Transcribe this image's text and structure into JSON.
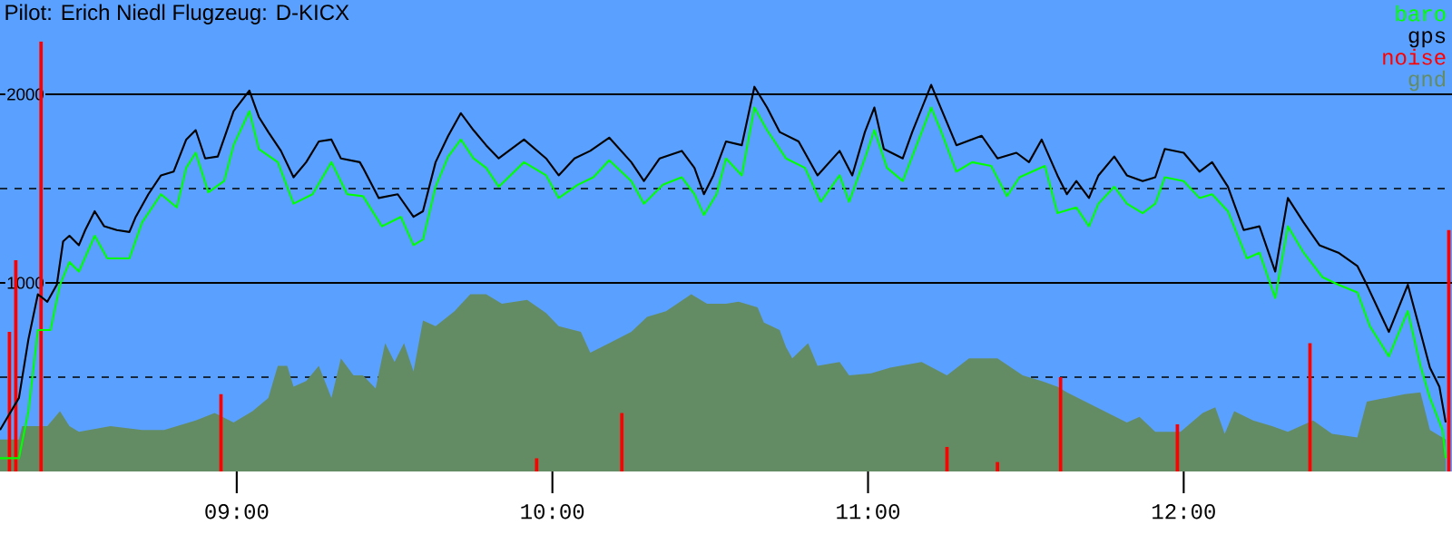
{
  "chart_data": {
    "type": "line",
    "title": "Pilot: Erich Niedl Flugzeug: D-KICX",
    "xlim": [
      8.25,
      12.85
    ],
    "ylim": [
      0,
      2500
    ],
    "xticks": [
      {
        "value": 9,
        "label": "09:00"
      },
      {
        "value": 10,
        "label": "10:00"
      },
      {
        "value": 11,
        "label": "11:00"
      },
      {
        "value": 12,
        "label": "12:00"
      }
    ],
    "yticks": [
      {
        "value": 500,
        "label": null
      },
      1000,
      {
        "value": 1500,
        "label": null
      },
      2000
    ],
    "grid": "y",
    "legend": "top right",
    "series": [
      {
        "name": "baro",
        "color": "#00ff00",
        "x": [
          8.25,
          8.31,
          8.34,
          8.37,
          8.41,
          8.44,
          8.47,
          8.5,
          8.55,
          8.59,
          8.66,
          8.7,
          8.76,
          8.81,
          8.84,
          8.87,
          8.91,
          8.96,
          8.99,
          9.04,
          9.07,
          9.13,
          9.18,
          9.24,
          9.3,
          9.35,
          9.4,
          9.46,
          9.52,
          9.56,
          9.59,
          9.63,
          9.67,
          9.71,
          9.75,
          9.79,
          9.83,
          9.91,
          9.98,
          10.02,
          10.08,
          10.13,
          10.18,
          10.25,
          10.29,
          10.35,
          10.41,
          10.45,
          10.48,
          10.52,
          10.55,
          10.6,
          10.64,
          10.68,
          10.74,
          10.8,
          10.85,
          10.91,
          10.94,
          10.99,
          11.02,
          11.06,
          11.11,
          11.14,
          11.2,
          11.23,
          11.28,
          11.33,
          11.39,
          11.44,
          11.48,
          11.56,
          11.6,
          11.66,
          11.7,
          11.73,
          11.78,
          11.82,
          11.87,
          11.91,
          11.94,
          12.0,
          12.05,
          12.09,
          12.14,
          12.2,
          12.24,
          12.29,
          12.33,
          12.38,
          12.44,
          12.49,
          12.55,
          12.59,
          12.65,
          12.71,
          12.75,
          12.78,
          12.82,
          12.83
        ],
        "values": [
          70,
          70,
          320,
          750,
          750,
          990,
          1110,
          1060,
          1250,
          1130,
          1130,
          1320,
          1470,
          1400,
          1610,
          1690,
          1480,
          1540,
          1730,
          1910,
          1710,
          1640,
          1420,
          1470,
          1640,
          1470,
          1460,
          1300,
          1350,
          1200,
          1230,
          1510,
          1670,
          1760,
          1660,
          1610,
          1510,
          1640,
          1570,
          1450,
          1520,
          1560,
          1650,
          1540,
          1420,
          1520,
          1560,
          1470,
          1360,
          1470,
          1660,
          1570,
          1930,
          1810,
          1660,
          1610,
          1430,
          1570,
          1430,
          1660,
          1810,
          1610,
          1540,
          1670,
          1930,
          1810,
          1590,
          1640,
          1620,
          1460,
          1560,
          1620,
          1370,
          1400,
          1300,
          1420,
          1510,
          1420,
          1370,
          1420,
          1560,
          1540,
          1450,
          1470,
          1380,
          1130,
          1160,
          920,
          1300,
          1160,
          1030,
          990,
          950,
          770,
          610,
          850,
          560,
          390,
          220,
          70
        ]
      },
      {
        "name": "gps",
        "color": "#000000",
        "x": [
          8.25,
          8.31,
          8.34,
          8.37,
          8.4,
          8.43,
          8.45,
          8.47,
          8.5,
          8.52,
          8.55,
          8.58,
          8.62,
          8.66,
          8.68,
          8.72,
          8.76,
          8.8,
          8.84,
          8.87,
          8.9,
          8.94,
          8.99,
          9.04,
          9.07,
          9.1,
          9.14,
          9.18,
          9.22,
          9.26,
          9.3,
          9.33,
          9.39,
          9.4,
          9.45,
          9.51,
          9.56,
          9.59,
          9.63,
          9.67,
          9.71,
          9.75,
          9.79,
          9.83,
          9.91,
          9.98,
          10.02,
          10.07,
          10.12,
          10.18,
          10.25,
          10.29,
          10.34,
          10.41,
          10.45,
          10.48,
          10.51,
          10.55,
          10.6,
          10.64,
          10.68,
          10.72,
          10.78,
          10.84,
          10.91,
          10.95,
          10.99,
          11.02,
          11.05,
          11.11,
          11.14,
          11.2,
          11.23,
          11.28,
          11.36,
          11.41,
          11.47,
          11.51,
          11.55,
          11.6,
          11.63,
          11.66,
          11.7,
          11.73,
          11.78,
          11.82,
          11.87,
          11.91,
          11.94,
          12.0,
          12.05,
          12.09,
          12.14,
          12.19,
          12.24,
          12.29,
          12.33,
          12.38,
          12.43,
          12.49,
          12.55,
          12.58,
          12.65,
          12.71,
          12.75,
          12.78,
          12.81,
          12.83
        ],
        "values": [
          220,
          390,
          700,
          940,
          900,
          990,
          1220,
          1250,
          1200,
          1280,
          1380,
          1300,
          1280,
          1270,
          1350,
          1470,
          1570,
          1590,
          1760,
          1810,
          1660,
          1670,
          1910,
          2020,
          1880,
          1800,
          1700,
          1560,
          1640,
          1750,
          1760,
          1660,
          1640,
          1610,
          1450,
          1470,
          1350,
          1380,
          1640,
          1780,
          1900,
          1810,
          1730,
          1660,
          1760,
          1660,
          1570,
          1660,
          1700,
          1770,
          1640,
          1540,
          1660,
          1700,
          1610,
          1470,
          1570,
          1750,
          1730,
          2040,
          1930,
          1800,
          1750,
          1570,
          1700,
          1570,
          1800,
          1930,
          1710,
          1660,
          1800,
          2050,
          1930,
          1730,
          1780,
          1660,
          1690,
          1640,
          1760,
          1570,
          1470,
          1540,
          1450,
          1570,
          1670,
          1570,
          1540,
          1560,
          1710,
          1690,
          1590,
          1640,
          1510,
          1280,
          1300,
          1060,
          1450,
          1320,
          1200,
          1160,
          1090,
          990,
          740,
          990,
          740,
          550,
          450,
          260
        ]
      },
      {
        "name": "noise",
        "type": "bar",
        "color": "#ff0000",
        "x": [
          8.28,
          8.3,
          8.38,
          8.95,
          9.95,
          10.22,
          11.25,
          11.41,
          11.61,
          11.98,
          12.4,
          12.84
        ],
        "values": [
          740,
          1120,
          2280,
          410,
          70,
          310,
          130,
          50,
          500,
          250,
          680,
          1280
        ]
      },
      {
        "name": "gnd",
        "type": "area",
        "color": "#648c64",
        "x": [
          8.25,
          8.31,
          8.32,
          8.4,
          8.44,
          8.47,
          8.5,
          8.6,
          8.7,
          8.77,
          8.87,
          8.93,
          8.99,
          9.05,
          9.1,
          9.13,
          9.16,
          9.18,
          9.22,
          9.26,
          9.3,
          9.33,
          9.37,
          9.4,
          9.44,
          9.47,
          9.5,
          9.53,
          9.56,
          9.59,
          9.63,
          9.69,
          9.74,
          9.79,
          9.84,
          9.92,
          9.98,
          10.02,
          10.09,
          10.12,
          10.18,
          10.25,
          10.3,
          10.36,
          10.44,
          10.49,
          10.55,
          10.59,
          10.65,
          10.67,
          10.72,
          10.74,
          10.76,
          10.81,
          10.84,
          10.91,
          10.94,
          11.01,
          11.07,
          11.17,
          11.25,
          11.32,
          11.41,
          11.49,
          11.55,
          11.6,
          11.63,
          11.7,
          11.76,
          11.82,
          11.86,
          11.91,
          11.99,
          12.06,
          12.1,
          12.13,
          12.16,
          12.22,
          12.28,
          12.33,
          12.41,
          12.47,
          12.55,
          12.58,
          12.64,
          12.7,
          12.75,
          12.78,
          12.83
        ],
        "values": [
          170,
          170,
          240,
          240,
          320,
          240,
          210,
          240,
          220,
          220,
          270,
          310,
          260,
          320,
          390,
          560,
          560,
          450,
          480,
          560,
          390,
          600,
          510,
          510,
          440,
          680,
          580,
          680,
          530,
          800,
          770,
          850,
          940,
          940,
          890,
          910,
          840,
          770,
          740,
          630,
          680,
          740,
          820,
          850,
          940,
          890,
          890,
          900,
          870,
          790,
          750,
          660,
          600,
          680,
          560,
          580,
          510,
          520,
          550,
          580,
          510,
          600,
          600,
          510,
          480,
          450,
          420,
          360,
          310,
          260,
          290,
          210,
          210,
          310,
          340,
          200,
          320,
          270,
          240,
          210,
          270,
          200,
          180,
          370,
          390,
          410,
          420,
          220,
          170
        ]
      }
    ]
  }
}
